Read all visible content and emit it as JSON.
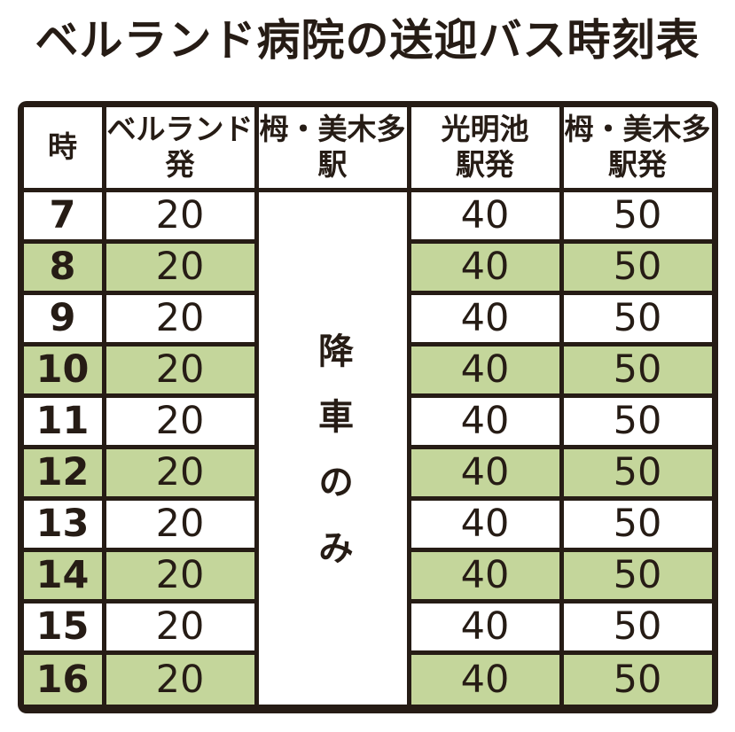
{
  "title": "ベルランド病院の送迎バス時刻表",
  "colors": {
    "ink": "#261c15",
    "row_highlight_green": "#c4d69b",
    "background": "#ffffff"
  },
  "table": {
    "columns": [
      {
        "id": "hour",
        "lines": [
          "時"
        ]
      },
      {
        "id": "bellland_dep",
        "lines": [
          "ベルランド",
          "発"
        ]
      },
      {
        "id": "toga_mikita_sta",
        "lines": [
          "栂・美木多",
          "駅"
        ]
      },
      {
        "id": "komyoike_dep",
        "lines": [
          "光明池",
          "駅発"
        ]
      },
      {
        "id": "toga_mikita_dep",
        "lines": [
          "栂・美木多",
          "駅発"
        ]
      }
    ],
    "center_note": "降車のみ",
    "rows": [
      {
        "hour": "7",
        "bellland_dep": "20",
        "komyoike_dep": "40",
        "toga_mikita_dep": "50",
        "highlighted": false
      },
      {
        "hour": "8",
        "bellland_dep": "20",
        "komyoike_dep": "40",
        "toga_mikita_dep": "50",
        "highlighted": true
      },
      {
        "hour": "9",
        "bellland_dep": "20",
        "komyoike_dep": "40",
        "toga_mikita_dep": "50",
        "highlighted": false
      },
      {
        "hour": "10",
        "bellland_dep": "20",
        "komyoike_dep": "40",
        "toga_mikita_dep": "50",
        "highlighted": true
      },
      {
        "hour": "11",
        "bellland_dep": "20",
        "komyoike_dep": "40",
        "toga_mikita_dep": "50",
        "highlighted": false
      },
      {
        "hour": "12",
        "bellland_dep": "20",
        "komyoike_dep": "40",
        "toga_mikita_dep": "50",
        "highlighted": true
      },
      {
        "hour": "13",
        "bellland_dep": "20",
        "komyoike_dep": "40",
        "toga_mikita_dep": "50",
        "highlighted": false
      },
      {
        "hour": "14",
        "bellland_dep": "20",
        "komyoike_dep": "40",
        "toga_mikita_dep": "50",
        "highlighted": true
      },
      {
        "hour": "15",
        "bellland_dep": "20",
        "komyoike_dep": "40",
        "toga_mikita_dep": "50",
        "highlighted": false
      },
      {
        "hour": "16",
        "bellland_dep": "20",
        "komyoike_dep": "40",
        "toga_mikita_dep": "50",
        "highlighted": true
      }
    ]
  }
}
